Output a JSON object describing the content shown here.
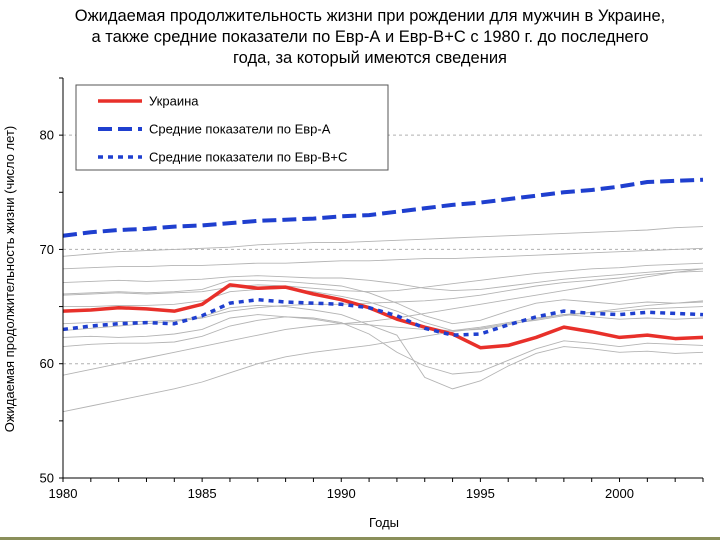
{
  "chart_data": {
    "type": "line",
    "title_lines": [
      "Ожидаемая продолжительность жизни при рождении для мужчин в Украине,",
      "а также средние показатели по Евр-А и Евр-В+С с 1980 г. до последнего",
      "года, за который имеются сведения"
    ],
    "xlabel": "Годы",
    "ylabel": "Ожидаемая продолжительность жизни (число лет)",
    "xlim": [
      1980,
      2003
    ],
    "ylim": [
      50,
      85
    ],
    "xticks": [
      "1980",
      "1985",
      "1990",
      "1995",
      "2000"
    ],
    "yticks": [
      "50",
      "60",
      "70",
      "80"
    ],
    "x": [
      1980,
      1981,
      1982,
      1983,
      1984,
      1985,
      1986,
      1987,
      1988,
      1989,
      1990,
      1991,
      1992,
      1993,
      1994,
      1995,
      1996,
      1997,
      1998,
      1999,
      2000,
      2001,
      2002,
      2003
    ],
    "series": [
      {
        "name": "Украина",
        "style": "solid",
        "color": "#e8302a",
        "values": [
          64.6,
          64.7,
          64.9,
          64.8,
          64.6,
          65.2,
          66.9,
          66.6,
          66.7,
          66.1,
          65.6,
          64.9,
          63.9,
          63.2,
          62.6,
          61.4,
          61.6,
          62.3,
          63.2,
          62.8,
          62.3,
          62.5,
          62.2,
          62.3
        ]
      },
      {
        "name": "Средние показатели по Евр-А",
        "style": "dashed",
        "color": "#1f3fcf",
        "values": [
          71.2,
          71.5,
          71.7,
          71.8,
          72.0,
          72.1,
          72.3,
          72.5,
          72.6,
          72.7,
          72.9,
          73.0,
          73.3,
          73.6,
          73.9,
          74.1,
          74.4,
          74.7,
          75.0,
          75.2,
          75.5,
          75.9,
          76.0,
          76.1
        ]
      },
      {
        "name": "Средние показатели по Евр-В+С",
        "style": "dotted",
        "color": "#1f3fcf",
        "values": [
          63.0,
          63.3,
          63.5,
          63.6,
          63.5,
          64.2,
          65.3,
          65.6,
          65.4,
          65.3,
          65.2,
          64.9,
          64.2,
          63.1,
          62.5,
          62.6,
          63.4,
          64.1,
          64.6,
          64.4,
          64.3,
          64.5,
          64.4,
          64.3
        ]
      }
    ],
    "background_series_color": "#b4b4b4",
    "background_series": [
      [
        59,
        59.5,
        60,
        60.5,
        61,
        61.5,
        62,
        62.5,
        63,
        63.3,
        63.5,
        63.7,
        64,
        64.4,
        64.8,
        65.2,
        65.6,
        66,
        66.4,
        66.8,
        67.2,
        67.6,
        68,
        68.3
      ],
      [
        55.8,
        56.3,
        56.8,
        57.3,
        57.8,
        58.4,
        59.2,
        60,
        60.6,
        61,
        61.3,
        61.6,
        62,
        62.4,
        62.8,
        63.1,
        63.5,
        63.8,
        64.2,
        64.5,
        64.8,
        65.1,
        65.3,
        65.5
      ],
      [
        69.4,
        69.6,
        69.8,
        69.9,
        70,
        70.1,
        70.2,
        70.4,
        70.5,
        70.6,
        70.6,
        70.7,
        70.8,
        70.9,
        71,
        71.1,
        71.2,
        71.3,
        71.4,
        71.5,
        71.6,
        71.7,
        71.9,
        72
      ],
      [
        68.3,
        68.4,
        68.5,
        68.5,
        68.6,
        68.6,
        68.7,
        68.8,
        68.8,
        68.9,
        69,
        69,
        69.1,
        69.2,
        69.2,
        69.3,
        69.4,
        69.5,
        69.6,
        69.7,
        69.8,
        69.9,
        70,
        70.1
      ],
      [
        67.1,
        67.2,
        67.3,
        67.2,
        67.3,
        67.4,
        67.6,
        67.7,
        67.6,
        67.5,
        67.5,
        67.3,
        67,
        66.6,
        66.4,
        66.5,
        66.8,
        67.1,
        67.4,
        67.6,
        67.8,
        68,
        68.2,
        68.3
      ],
      [
        66.1,
        66.2,
        66.3,
        66.2,
        66.3,
        66.5,
        67.3,
        67.3,
        67.2,
        67,
        66.8,
        66.2,
        65.3,
        64.2,
        63.5,
        63.8,
        64.6,
        65.3,
        65.6,
        65.4,
        65.2,
        65.4,
        65.3,
        65.4
      ],
      [
        65,
        65,
        65.1,
        65.1,
        65.2,
        65.5,
        66.3,
        66.5,
        66.6,
        66.3,
        65.9,
        65.4,
        64.6,
        63.6,
        62.9,
        63,
        63.4,
        63.9,
        64.3,
        64.1,
        63.9,
        64,
        63.9,
        64
      ],
      [
        62.9,
        63.1,
        63.3,
        63.5,
        63.7,
        64,
        64.6,
        64.9,
        65.1,
        65.2,
        65.2,
        65.3,
        65.4,
        65.5,
        65.7,
        66,
        66.4,
        66.8,
        67.1,
        67.3,
        67.5,
        67.8,
        68,
        68.1
      ],
      [
        61.5,
        61.7,
        61.8,
        61.8,
        61.9,
        62.4,
        63.3,
        63.8,
        64.1,
        64,
        63.6,
        62.6,
        61,
        59.8,
        59.1,
        59.3,
        60.3,
        61.3,
        62,
        61.8,
        61.5,
        61.8,
        61.7,
        61.6
      ],
      [
        63.5,
        63.6,
        63.7,
        63.7,
        63.8,
        64.1,
        64.9,
        65.1,
        65,
        64.7,
        64.3,
        63.4,
        62.5,
        58.8,
        57.8,
        58.5,
        59.8,
        60.9,
        61.5,
        61.3,
        61,
        61.1,
        60.9,
        61
      ],
      [
        66,
        66.1,
        66.2,
        66.1,
        66.2,
        66.3,
        66.7,
        66.9,
        66.8,
        66.6,
        66.4,
        66.3,
        66.4,
        66.7,
        67,
        67.3,
        67.6,
        67.9,
        68.1,
        68.3,
        68.4,
        68.6,
        68.7,
        68.8
      ],
      [
        62.3,
        62.4,
        62.3,
        62.4,
        62.6,
        63,
        64,
        64.3,
        64.1,
        63.9,
        63.5,
        63.4,
        63.2,
        63,
        62.9,
        63.2,
        63.6,
        64,
        64.3,
        64.5,
        64.6,
        64.8,
        64.9,
        65
      ]
    ]
  }
}
